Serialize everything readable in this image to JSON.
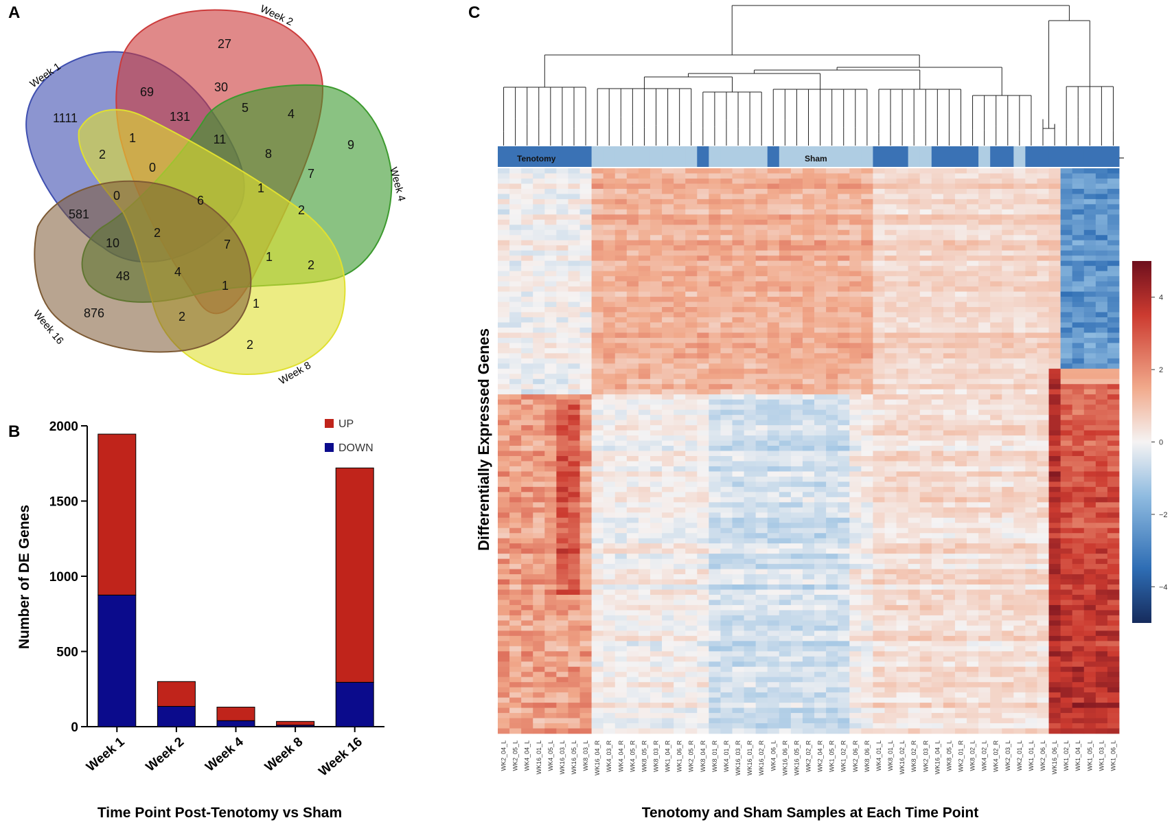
{
  "panels": {
    "a": "A",
    "b": "B",
    "c": "C"
  },
  "venn": {
    "sets": [
      {
        "name": "Week 1",
        "color": "#3f4fb0"
      },
      {
        "name": "Week 2",
        "color": "#cc3b3b"
      },
      {
        "name": "Week 4",
        "color": "#3c9a2e"
      },
      {
        "name": "Week 8",
        "color": "#e0e030"
      },
      {
        "name": "Week 16",
        "color": "#7d5a34"
      }
    ],
    "region_counts": [
      "27",
      "69",
      "30",
      "1111",
      "131",
      "5",
      "4",
      "9",
      "1",
      "11",
      "8",
      "7",
      "2",
      "0",
      "0",
      "6",
      "1",
      "2",
      "581",
      "2",
      "10",
      "7",
      "1",
      "2",
      "48",
      "4",
      "1",
      "1",
      "876",
      "2",
      "2"
    ]
  },
  "chart_data": [
    {
      "type": "bar",
      "stacked": true,
      "title": "",
      "categories": [
        "Week 1",
        "Week 2",
        "Week 4",
        "Week 8",
        "Week 16"
      ],
      "series": [
        {
          "name": "DOWN",
          "color": "#0b0b8c",
          "values": [
            875,
            135,
            40,
            10,
            295
          ]
        },
        {
          "name": "UP",
          "color": "#c0241b",
          "values": [
            1070,
            165,
            90,
            25,
            1425
          ]
        }
      ],
      "xlabel": "Time Point Post-Tenotomy vs Sham",
      "ylabel": "Number of DE Genes",
      "ylim": [
        0,
        2000
      ],
      "yticks": [
        "0",
        "500",
        "1000",
        "1500",
        "2000"
      ],
      "legend": [
        "UP",
        "DOWN"
      ]
    },
    {
      "type": "heatmap",
      "ylabel": "Differentially Expressed Genes",
      "xlabel": "Tenotomy and Sham Samples at Each Time Point",
      "group_labels": [
        "Tenotomy",
        "Sham"
      ],
      "colorbar": {
        "min": -5,
        "max": 5,
        "ticks": [
          "4",
          "2",
          "0",
          "−2",
          "−4"
        ]
      },
      "samples": [
        "WK2_04_L",
        "WK2_05_L",
        "WK4_04_L",
        "WK16_01_L",
        "WK4_05_L",
        "WK16_03_L",
        "WK16_05_L",
        "WK8_03_L",
        "WK16_04_R",
        "WK4_03_R",
        "WK4_04_R",
        "WK4_05_R",
        "WK8_05_R",
        "WK8_03_R",
        "WK1_04_R",
        "WK1_06_R",
        "WK2_05_R",
        "WK8_04_R",
        "WK8_01_R",
        "WK4_01_R",
        "WK16_03_R",
        "WK16_01_R",
        "WK16_02_R",
        "WK4_06_L",
        "WK16_06_R",
        "WK16_05_R",
        "WK2_02_R",
        "WK2_04_R",
        "WK1_05_R",
        "WK1_02_R",
        "WK2_06_R",
        "WK8_06_R",
        "WK4_01_L",
        "WK8_01_L",
        "WK16_02_L",
        "WK8_02_R",
        "WK2_03_R",
        "WK16_04_L",
        "WK8_05_L",
        "WK2_01_R",
        "WK8_02_L",
        "WK4_02_L",
        "WK4_02_R",
        "WK2_03_L",
        "WK2_01_L",
        "WK1_01_L",
        "WK2_06_L",
        "WK16_06_L",
        "WK1_02_L",
        "WK1_04_L",
        "WK1_05_L",
        "WK1_03_L",
        "WK1_06_L"
      ],
      "annotation_groups": [
        "T",
        "T",
        "T",
        "T",
        "T",
        "T",
        "T",
        "T",
        "S",
        "S",
        "S",
        "S",
        "S",
        "S",
        "S",
        "S",
        "S",
        "T",
        "S",
        "S",
        "S",
        "S",
        "S",
        "T",
        "S",
        "S",
        "S",
        "S",
        "S",
        "S",
        "S",
        "S",
        "T",
        "T",
        "T",
        "S",
        "S",
        "T",
        "T",
        "T",
        "T",
        "S",
        "T",
        "T",
        "S",
        "T",
        "T",
        "T",
        "T",
        "T",
        "T",
        "T",
        "T"
      ]
    }
  ]
}
